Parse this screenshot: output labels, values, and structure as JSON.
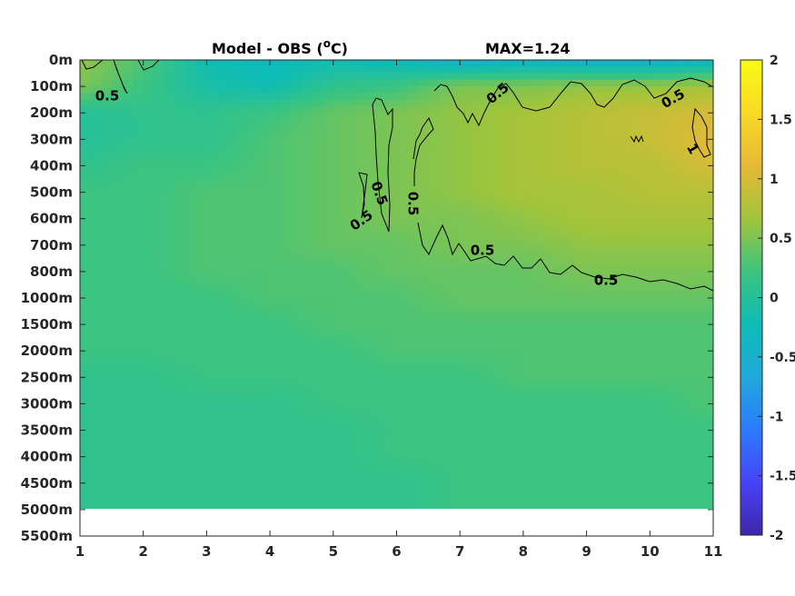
{
  "chart_data": {
    "type": "heatmap",
    "title_left": "Model - OBS (",
    "title_unit_super": "o",
    "title_unit_tail": "C)",
    "title_right": "MAX=1.24",
    "x_ticks": [
      "1",
      "2",
      "3",
      "4",
      "5",
      "6",
      "7",
      "8",
      "9",
      "10",
      "11"
    ],
    "y_ticks": [
      "0m",
      "100m",
      "200m",
      "300m",
      "400m",
      "500m",
      "600m",
      "700m",
      "800m",
      "1000m",
      "1500m",
      "2000m",
      "2500m",
      "3000m",
      "3500m",
      "4000m",
      "4500m",
      "5000m",
      "5500m"
    ],
    "xlim": [
      1,
      11
    ],
    "clim": [
      -2,
      2
    ],
    "colorbar_ticks": [
      "2",
      "1.5",
      "1",
      "0.5",
      "0",
      "-0.5",
      "-1",
      "-1.5",
      "-2"
    ],
    "colorbar_values": [
      2,
      1.5,
      1,
      0.5,
      0,
      -0.5,
      -1,
      -1.5,
      -2
    ],
    "colormap": [
      "#3e26a8",
      "#4743f8",
      "#2c7bfd",
      "#20a9db",
      "#0dbcb5",
      "#3dc47f",
      "#a2c43a",
      "#e6b936",
      "#fada25",
      "#f9fb15"
    ],
    "data_extent_bottom": "5000m",
    "contour_level_labels": [
      "0.5",
      "0.5",
      "0.5",
      "0.5",
      "0.5",
      "0.5",
      "0.5",
      "0.5",
      "1"
    ],
    "approx_field": {
      "note_levels": "rows follow y tick levels 0m..5000m, columns follow x ticks 1..11",
      "values": [
        [
          0.6,
          0.3,
          -0.2,
          -0.3,
          -0.2,
          -0.3,
          -0.5,
          -0.4,
          -0.5,
          -0.5,
          -0.4
        ],
        [
          0.5,
          0.2,
          -0.1,
          -0.2,
          0.1,
          0.2,
          0.5,
          0.5,
          0.6,
          0.6,
          0.7
        ],
        [
          0.0,
          0.1,
          0.1,
          0.2,
          0.4,
          0.5,
          0.6,
          0.7,
          0.8,
          0.9,
          1.0
        ],
        [
          0.0,
          0.1,
          0.1,
          0.3,
          0.4,
          0.5,
          0.6,
          0.7,
          0.8,
          0.9,
          1.1
        ],
        [
          0.1,
          0.2,
          0.2,
          0.3,
          0.4,
          0.5,
          0.6,
          0.7,
          0.8,
          0.8,
          1.0
        ],
        [
          0.2,
          0.2,
          0.3,
          0.3,
          0.4,
          0.5,
          0.6,
          0.7,
          0.7,
          0.8,
          0.8
        ],
        [
          0.2,
          0.2,
          0.3,
          0.3,
          0.4,
          0.5,
          0.5,
          0.6,
          0.7,
          0.7,
          0.7
        ],
        [
          0.2,
          0.2,
          0.3,
          0.3,
          0.4,
          0.4,
          0.5,
          0.5,
          0.6,
          0.6,
          0.6
        ],
        [
          0.2,
          0.2,
          0.3,
          0.3,
          0.3,
          0.4,
          0.4,
          0.4,
          0.5,
          0.5,
          0.5
        ],
        [
          0.2,
          0.2,
          0.2,
          0.3,
          0.3,
          0.3,
          0.4,
          0.4,
          0.4,
          0.4,
          0.4
        ],
        [
          0.2,
          0.2,
          0.2,
          0.2,
          0.3,
          0.3,
          0.3,
          0.3,
          0.3,
          0.3,
          0.3
        ],
        [
          0.2,
          0.2,
          0.2,
          0.2,
          0.2,
          0.3,
          0.3,
          0.3,
          0.3,
          0.3,
          0.3
        ],
        [
          0.1,
          0.1,
          0.2,
          0.2,
          0.2,
          0.2,
          0.2,
          0.3,
          0.3,
          0.3,
          0.3
        ],
        [
          0.1,
          0.1,
          0.1,
          0.1,
          0.2,
          0.2,
          0.2,
          0.2,
          0.2,
          0.2,
          0.3
        ],
        [
          0.1,
          0.1,
          0.1,
          0.1,
          0.1,
          0.2,
          0.2,
          0.2,
          0.2,
          0.2,
          0.2
        ],
        [
          0.1,
          0.1,
          0.1,
          0.1,
          0.1,
          0.2,
          0.2,
          0.2,
          0.2,
          0.2,
          0.2
        ],
        [
          0.1,
          0.1,
          0.1,
          0.1,
          0.1,
          0.1,
          0.2,
          0.2,
          0.2,
          0.2,
          0.2
        ],
        [
          0.1,
          0.1,
          0.1,
          0.1,
          0.1,
          0.1,
          0.2,
          0.2,
          0.2,
          0.2,
          0.2
        ]
      ]
    }
  }
}
